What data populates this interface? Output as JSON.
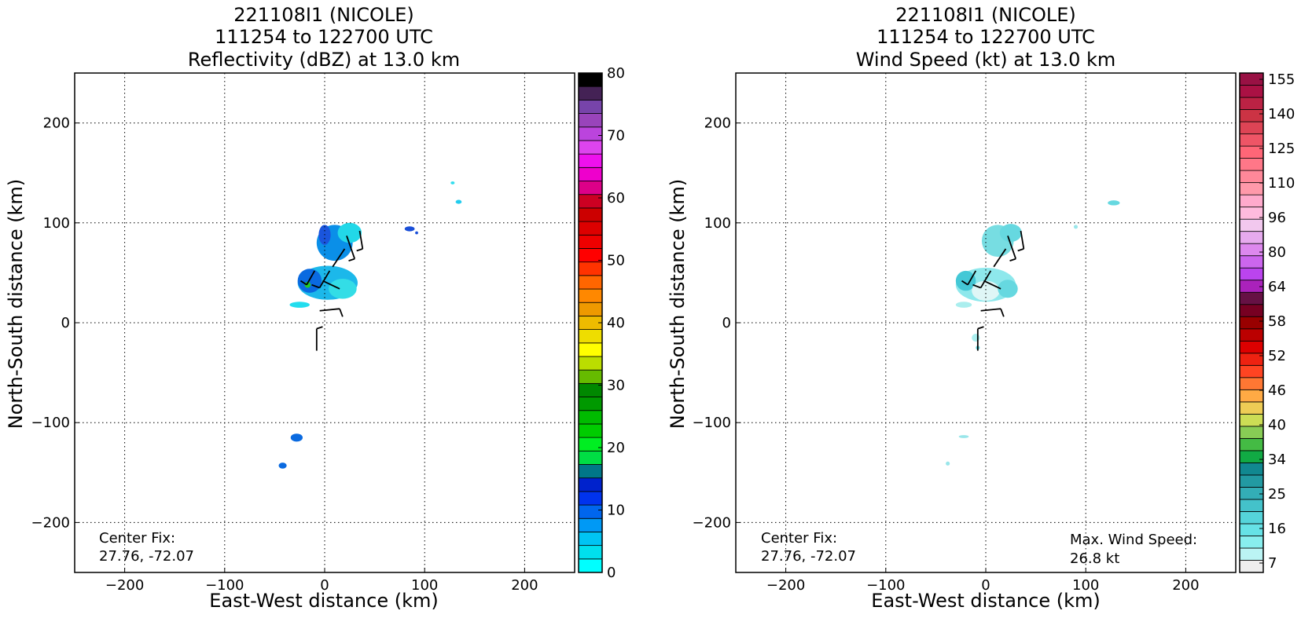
{
  "chart_data": [
    {
      "type": "heatmap",
      "title": [
        "221108I1 (NICOLE)",
        "111254 to 122700 UTC",
        "Reflectivity (dBZ) at 13.0 km"
      ],
      "xlabel": "East-West distance (km)",
      "ylabel": "North-South distance (km)",
      "xlim": [
        -250,
        250
      ],
      "ylim": [
        -250,
        250
      ],
      "xticks": [
        -200,
        -100,
        0,
        100,
        200
      ],
      "yticks": [
        -200,
        -100,
        0,
        100,
        200
      ],
      "xtick_labels": [
        "−200",
        "−100",
        "0",
        "100",
        "200"
      ],
      "ytick_labels": [
        "−200",
        "−100",
        "0",
        "100",
        "200"
      ],
      "grid": true,
      "annotation": [
        "Center Fix:",
        "27.76, -72.07"
      ],
      "colorbar": {
        "tick_labels": [
          "0",
          "10",
          "20",
          "30",
          "40",
          "50",
          "60",
          "70",
          "80"
        ],
        "colors": [
          "#00ffff",
          "#00e0ee",
          "#00c4f4",
          "#0099f5",
          "#0066ee",
          "#0033ee",
          "#0022cc",
          "#007788",
          "#00dd44",
          "#00ee22",
          "#00cc00",
          "#00bb00",
          "#009900",
          "#008800",
          "#66bb00",
          "#bbdd00",
          "#ffff00",
          "#eedd00",
          "#eebb00",
          "#ee9900",
          "#ff8800",
          "#ff6600",
          "#ff3300",
          "#ff0000",
          "#ee0000",
          "#dd0000",
          "#cc0000",
          "#cc0022",
          "#dd0088",
          "#ee00cc",
          "#ee11ee",
          "#dd44ee",
          "#bb44dd",
          "#9944bb",
          "#7744aa",
          "#442255",
          "#000000"
        ]
      },
      "blobs": [
        {
          "x": 10,
          "y": 80,
          "rx": 18,
          "ry": 18,
          "color": "#0a8fe8"
        },
        {
          "x": 0,
          "y": 88,
          "rx": 6,
          "ry": 10,
          "color": "#1a55dd"
        },
        {
          "x": 25,
          "y": 90,
          "rx": 12,
          "ry": 10,
          "color": "#22d8e8"
        },
        {
          "x": 3,
          "y": 40,
          "rx": 30,
          "ry": 17,
          "color": "#1cb8ea"
        },
        {
          "x": -15,
          "y": 42,
          "rx": 12,
          "ry": 12,
          "color": "#0a6ae0"
        },
        {
          "x": 18,
          "y": 34,
          "rx": 14,
          "ry": 10,
          "color": "#33dde6"
        },
        {
          "x": -17,
          "y": 38,
          "rx": 3,
          "ry": 3,
          "color": "#22cc22"
        },
        {
          "x": -25,
          "y": 18,
          "rx": 10,
          "ry": 3,
          "color": "#22ddee"
        },
        {
          "x": 85,
          "y": 94,
          "rx": 5,
          "ry": 2.5,
          "color": "#1a4fd8"
        },
        {
          "x": 92,
          "y": 90,
          "rx": 1.5,
          "ry": 1.5,
          "color": "#1a4fd8"
        },
        {
          "x": 128,
          "y": 140,
          "rx": 2,
          "ry": 1.5,
          "color": "#33ddee"
        },
        {
          "x": 134,
          "y": 121,
          "rx": 3,
          "ry": 2,
          "color": "#22ccee"
        },
        {
          "x": -28,
          "y": -115,
          "rx": 6,
          "ry": 4,
          "color": "#0a6ae0"
        },
        {
          "x": -42,
          "y": -143,
          "rx": 4,
          "ry": 3,
          "color": "#0a6ae0"
        }
      ]
    },
    {
      "type": "heatmap",
      "title": [
        "221108I1 (NICOLE)",
        "111254 to 122700 UTC",
        "Wind Speed (kt) at 13.0 km"
      ],
      "xlabel": "East-West distance (km)",
      "ylabel": "North-South distance (km)",
      "xlim": [
        -250,
        250
      ],
      "ylim": [
        -250,
        250
      ],
      "xticks": [
        -200,
        -100,
        0,
        100,
        200
      ],
      "yticks": [
        -200,
        -100,
        0,
        100,
        200
      ],
      "xtick_labels": [
        "−200",
        "−100",
        "0",
        "100",
        "200"
      ],
      "ytick_labels": [
        "−200",
        "−100",
        "0",
        "100",
        "200"
      ],
      "grid": true,
      "annotation": [
        "Center Fix:",
        "27.76, -72.07"
      ],
      "annotation2": [
        "Max. Wind Speed:",
        "26.8 kt"
      ],
      "colorbar": {
        "tick_labels": [
          "7",
          "16",
          "25",
          "34",
          "40",
          "46",
          "52",
          "58",
          "64",
          "80",
          "96",
          "110",
          "125",
          "140",
          "155"
        ],
        "colors": [
          "#eeeeee",
          "#bbf4f4",
          "#88eeee",
          "#66e2e6",
          "#55d4da",
          "#44c2ca",
          "#33aeb6",
          "#229aa2",
          "#118890",
          "#11aa44",
          "#44bb44",
          "#88cc55",
          "#ccdd55",
          "#eecc55",
          "#ffaa44",
          "#ff7733",
          "#ff4422",
          "#ee2211",
          "#dd0000",
          "#bb0000",
          "#990000",
          "#770022",
          "#661144",
          "#aa22bb",
          "#bb44ee",
          "#cc66ee",
          "#dd88ee",
          "#e6aaee",
          "#f2c8ee",
          "#ffbbdd",
          "#ffaacc",
          "#ff99aa",
          "#ff8899",
          "#ff7788",
          "#ff6677",
          "#ee5566",
          "#dd4455",
          "#cc3344",
          "#bb2244",
          "#aa1144",
          "#991144"
        ]
      },
      "blobs": [
        {
          "x": 12,
          "y": 82,
          "rx": 16,
          "ry": 16,
          "color": "#77dde2"
        },
        {
          "x": 25,
          "y": 90,
          "rx": 11,
          "ry": 9,
          "color": "#66d8e0"
        },
        {
          "x": 0,
          "y": 38,
          "rx": 30,
          "ry": 17,
          "color": "#8ee8ec"
        },
        {
          "x": -20,
          "y": 42,
          "rx": 10,
          "ry": 10,
          "color": "#44c8d6"
        },
        {
          "x": 0,
          "y": 32,
          "rx": 14,
          "ry": 10,
          "color": "#dff6f6"
        },
        {
          "x": 22,
          "y": 34,
          "rx": 10,
          "ry": 9,
          "color": "#66d8e0"
        },
        {
          "x": -22,
          "y": 18,
          "rx": 8,
          "ry": 3,
          "color": "#aaeeee"
        },
        {
          "x": -10,
          "y": -15,
          "rx": 4,
          "ry": 4,
          "color": "#aaeeee"
        },
        {
          "x": 90,
          "y": 96,
          "rx": 2,
          "ry": 2,
          "color": "#99e6ea"
        },
        {
          "x": 128,
          "y": 120,
          "rx": 6,
          "ry": 2.5,
          "color": "#66d8e0"
        },
        {
          "x": -22,
          "y": -114,
          "rx": 5,
          "ry": 1.5,
          "color": "#99e6ea"
        },
        {
          "x": -38,
          "y": -141,
          "rx": 2,
          "ry": 2,
          "color": "#99e6ea"
        },
        {
          "x": -8,
          "y": -25,
          "rx": 2,
          "ry": 2,
          "color": "#66d8e0"
        }
      ]
    }
  ]
}
